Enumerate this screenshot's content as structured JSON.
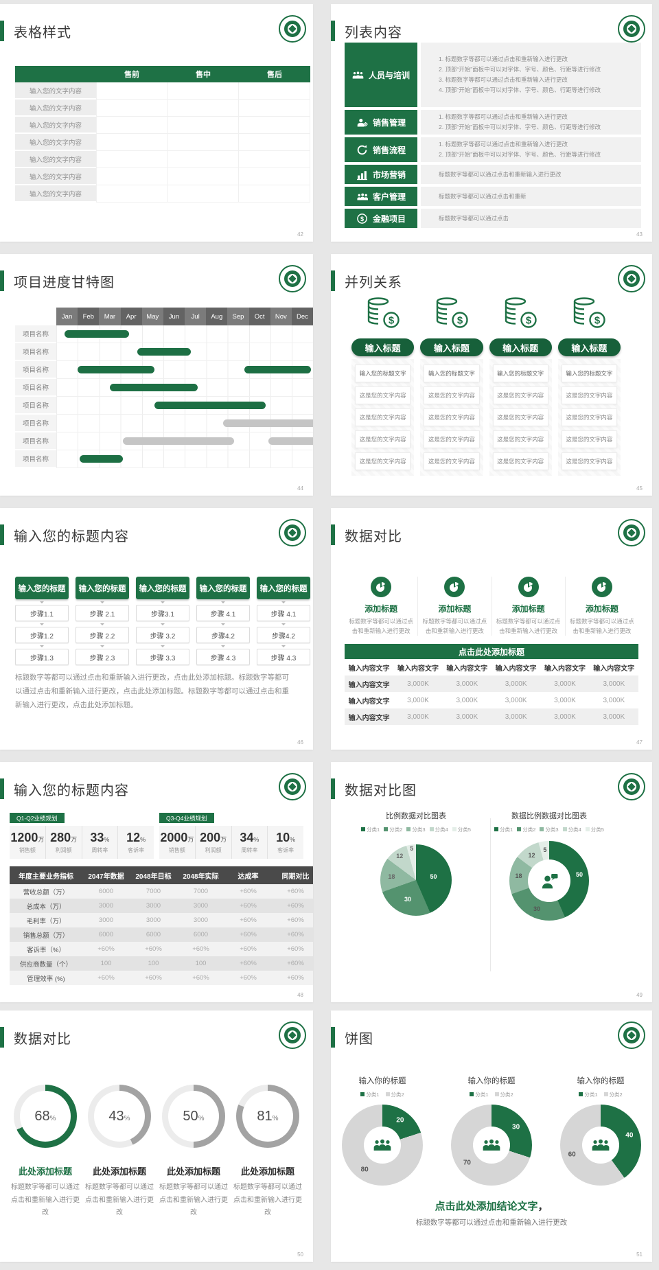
{
  "theme": {
    "green": "#1e7145",
    "green_dark": "#17603a",
    "gantt_green": "#1d6f44",
    "gantt_gray": "#c5c5c5",
    "ring_track": "#ececec",
    "ring_gray": "#a3a3a3"
  },
  "slides": {
    "s1": {
      "title": "表格样式",
      "page": "42",
      "col_headers": [
        "售前",
        "售中",
        "售后"
      ],
      "row_label": "输入您的文字内容"
    },
    "s2": {
      "title": "列表内容",
      "page": "43",
      "items": [
        {
          "label": "人员与培训",
          "lines": [
            "1.  标题数字等都可以通过点击和重新输入进行更改",
            "2.  顶部“开始”面板中可以对字体、字号、颜色、行距等进行修改",
            "3.  标题数字等都可以通过点击和重新输入进行更改",
            "4.  顶部“开始”面板中可以对字体、字号、颜色、行距等进行修改"
          ]
        },
        {
          "label": "销售管理",
          "lines": [
            "1.  标题数字等都可以通过点击和重新输入进行更改",
            "2.  顶部“开始”面板中可以对字体、字号、颜色、行距等进行修改"
          ]
        },
        {
          "label": "销售流程",
          "lines": [
            "1.  标题数字等都可以通过点击和重新输入进行更改",
            "2.  顶部“开始”面板中可以对字体、字号、颜色、行距等进行修改"
          ]
        },
        {
          "label": "市场营销",
          "lines": [
            "标题数字等都可以通过点击和重新输入进行更改"
          ]
        },
        {
          "label": "客户管理",
          "lines": [
            "标题数字等都可以通过点击和重新"
          ]
        },
        {
          "label": "金融项目",
          "lines": [
            "标题数字等都可以通过点击"
          ]
        }
      ]
    },
    "s3": {
      "title": "项目进度甘特图",
      "page": "44",
      "row_label": "项目名称",
      "months": [
        "Jan",
        "Feb",
        "Mar",
        "Apr",
        "May",
        "Jun",
        "Jul",
        "Aug",
        "Sep",
        "Oct",
        "Nov",
        "Dec"
      ],
      "chart": {
        "type": "gantt",
        "unit": "month",
        "rows": [
          {
            "bars": [
              {
                "start": 0.4,
                "end": 3.4,
                "color": "green"
              }
            ]
          },
          {
            "bars": [
              {
                "start": 3.8,
                "end": 6.3,
                "color": "green"
              }
            ]
          },
          {
            "bars": [
              {
                "start": 1.0,
                "end": 4.6,
                "color": "green"
              },
              {
                "start": 8.8,
                "end": 11.9,
                "color": "green"
              }
            ]
          },
          {
            "bars": [
              {
                "start": 2.5,
                "end": 6.6,
                "color": "green"
              }
            ]
          },
          {
            "bars": [
              {
                "start": 4.6,
                "end": 9.8,
                "color": "green"
              }
            ]
          },
          {
            "bars": [
              {
                "start": 7.8,
                "end": 12.4,
                "color": "gray"
              }
            ]
          },
          {
            "bars": [
              {
                "start": 3.1,
                "end": 8.3,
                "color": "gray"
              },
              {
                "start": 9.9,
                "end": 12.4,
                "color": "gray"
              }
            ]
          },
          {
            "bars": [
              {
                "start": 1.1,
                "end": 3.1,
                "color": "green"
              }
            ]
          }
        ]
      }
    },
    "s4": {
      "title": "并列关系",
      "page": "45",
      "pill_label": "输入标题",
      "box_title": "输入您的标题文字",
      "box_text": "这是您的文字内容"
    },
    "s5": {
      "title": "输入您的标题内容",
      "page": "46",
      "header_label": "输入您的标题",
      "steps": [
        [
          "步骤1.1",
          "步骤1.2",
          "步骤1.3"
        ],
        [
          "步骤 2.1",
          "步骤 2.2",
          "步骤 2.3"
        ],
        [
          "步骤3.1",
          "步骤 3.2",
          "步骤 3.3"
        ],
        [
          "步骤 4.1",
          "步骤4.2",
          "步骤 4.3"
        ],
        [
          "步骤 4.1",
          "步骤4.2",
          "步骤 4.3"
        ]
      ],
      "paragraph": "标题数字等都可以通过点击和重新输入进行更改，点击此处添加标题。标题数字等都可以通过点击和重新输入进行更改，点击此处添加标题。标题数字等都可以通过点击和重新输入进行更改，点击此处添加标题。"
    },
    "s6": {
      "title": "数据对比",
      "page": "47",
      "col_title": "添加标题",
      "col_line1": "标题数字等都可以通过点",
      "col_line2": "击和重新输入进行更改",
      "bar_title": "点击此处添加标题",
      "col_header": "输入内容文字",
      "row_label": "输入内容文字",
      "cell_value": "3,000K"
    },
    "s7": {
      "title": "输入您的标题内容",
      "page": "48",
      "tag1": "Q1-Q2业绩规划",
      "tag2": "Q3-Q4业绩规划",
      "stats1": [
        {
          "v": "1200",
          "u": "万",
          "l": "销售额"
        },
        {
          "v": "280",
          "u": "万",
          "l": "利润额"
        },
        {
          "v": "33",
          "u": "%",
          "l": "周转率"
        },
        {
          "v": "12",
          "u": "%",
          "l": "客诉率"
        }
      ],
      "stats2": [
        {
          "v": "2000",
          "u": "万",
          "l": "销售额"
        },
        {
          "v": "200",
          "u": "万",
          "l": "利润额"
        },
        {
          "v": "34",
          "u": "%",
          "l": "周转率"
        },
        {
          "v": "10",
          "u": "%",
          "l": "客诉率"
        }
      ],
      "table": {
        "headers": [
          "年度主要业务指标",
          "2047年数据",
          "2048年目标",
          "2048年实际",
          "达成率",
          "同期对比"
        ],
        "rows": [
          [
            "营收总额（万）",
            "6000",
            "7000",
            "7000",
            "+60%",
            "+60%"
          ],
          [
            "总成本（万）",
            "3000",
            "3000",
            "3000",
            "+60%",
            "+60%"
          ],
          [
            "毛利率（万）",
            "3000",
            "3000",
            "3000",
            "+60%",
            "+60%"
          ],
          [
            "销售总额（万）",
            "6000",
            "6000",
            "6000",
            "+60%",
            "+60%"
          ],
          [
            "客诉率（%）",
            "+60%",
            "+60%",
            "+60%",
            "+60%",
            "+60%"
          ],
          [
            "供应商数量（个）",
            "100",
            "100",
            "100",
            "+60%",
            "+60%"
          ],
          [
            "管理效率 (%)",
            "+60%",
            "+60%",
            "+60%",
            "+60%",
            "+60%"
          ]
        ]
      }
    },
    "s8": {
      "title": "数据对比图",
      "page": "49",
      "left_title": "比例数据对比图表",
      "right_title": "数据比例数据对比图表",
      "legend": [
        "分类1",
        "分类2",
        "分类3",
        "分类4",
        "分类5"
      ],
      "colors": [
        "#1e7145",
        "#54936f",
        "#8fb9a1",
        "#c2d8cb",
        "#e4eee8"
      ],
      "chart_left": {
        "type": "pie",
        "values": [
          50,
          30,
          18,
          12,
          5
        ]
      },
      "chart_right": {
        "type": "donut",
        "values": [
          50,
          30,
          18,
          12,
          5
        ]
      }
    },
    "s9": {
      "title": "数据对比",
      "page": "50",
      "unit": "%",
      "items": [
        {
          "pct": 68,
          "color": "#1e7145",
          "title": "此处添加标题",
          "text": "标题数字等都可以通过点击和重新输入进行更改"
        },
        {
          "pct": 43,
          "color": "#a3a3a3",
          "title": "此处添加标题",
          "text": "标题数字等都可以通过点击和重新输入进行更改"
        },
        {
          "pct": 50,
          "color": "#a3a3a3",
          "title": "此处添加标题",
          "text": "标题数字等都可以通过点击和重新输入进行更改"
        },
        {
          "pct": 81,
          "color": "#a3a3a3",
          "title": "此处添加标题",
          "text": "标题数字等都可以通过点击和重新输入进行更改"
        }
      ]
    },
    "s10": {
      "title": "饼图",
      "page": "51",
      "chart_title": "输入你的标题",
      "legend": [
        "分类1",
        "分类2"
      ],
      "colors": [
        "#1e7145",
        "#d6d6d6"
      ],
      "donuts": [
        {
          "type": "donut",
          "values": [
            20,
            80
          ]
        },
        {
          "type": "donut",
          "values": [
            30,
            70
          ]
        },
        {
          "type": "donut",
          "values": [
            40,
            60
          ]
        }
      ],
      "conclusion": "点击此处添加结论文字",
      "conclusion_comma": "，",
      "note": "标题数字等都可以通过点击和重新输入进行更改"
    }
  }
}
